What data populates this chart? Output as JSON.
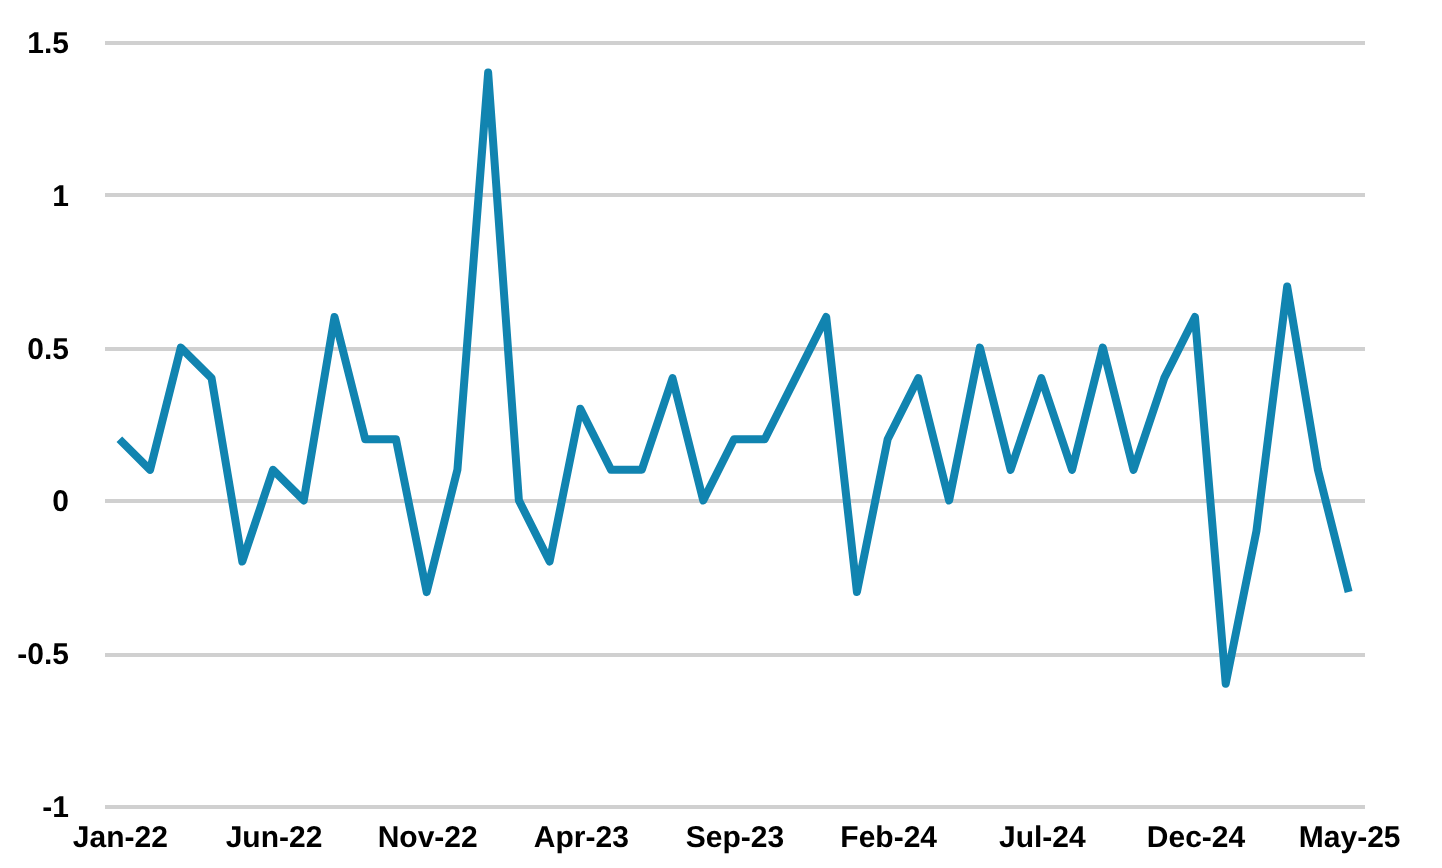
{
  "chart_data": {
    "type": "line",
    "categories": [
      "Jan-22",
      null,
      null,
      null,
      null,
      "Jun-22",
      null,
      null,
      null,
      null,
      "Nov-22",
      null,
      null,
      null,
      null,
      "Apr-23",
      null,
      null,
      null,
      null,
      "Sep-23",
      null,
      null,
      null,
      null,
      "Feb-24",
      null,
      null,
      null,
      null,
      "Jul-24",
      null,
      null,
      null,
      null,
      "Dec-24",
      null,
      null,
      null,
      null,
      "May-25"
    ],
    "series": [
      {
        "color": "#1184b0",
        "values": [
          0.2,
          0.1,
          0.5,
          0.4,
          -0.2,
          0.1,
          0.0,
          0.6,
          0.2,
          0.2,
          -0.3,
          0.1,
          1.4,
          0.0,
          -0.2,
          0.3,
          0.1,
          0.1,
          0.4,
          0.0,
          0.2,
          0.2,
          0.4,
          0.6,
          -0.3,
          0.2,
          0.4,
          0.0,
          0.5,
          0.1,
          0.4,
          0.1,
          0.5,
          0.1,
          0.4,
          0.6,
          -0.6,
          -0.1,
          0.7,
          0.1,
          -0.3
        ]
      }
    ],
    "ylim": [
      -1,
      1.5
    ],
    "yticks": [
      -1,
      -0.5,
      0,
      0.5,
      1,
      1.5
    ],
    "grid": "y",
    "marker": "none",
    "line_style": "solid"
  }
}
